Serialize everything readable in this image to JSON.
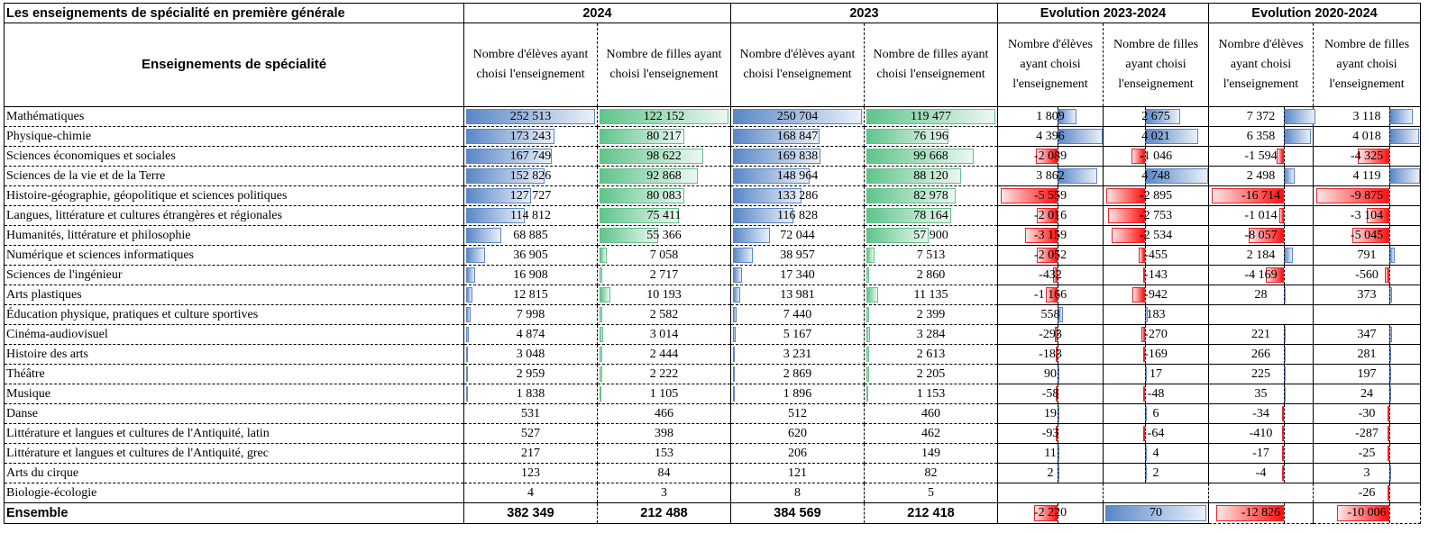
{
  "title": "Les enseignements de spécialité en première générale",
  "header": {
    "groups": [
      "2024",
      "2023",
      "Evolution 2023-2024",
      "Evolution 2020-2024"
    ],
    "label_col": "Enseignements de spécialité",
    "sub_cols": [
      "Nombre d'élèves ayant choisi l'enseignement",
      "Nombre de filles ayant choisi l'enseignement",
      "Nombre d'élèves ayant choisi l'enseignement",
      "Nombre de filles ayant choisi l'enseignement",
      "Nombre d'élèves ayant choisi l'enseignement",
      "Nombre de filles ayant choisi l'enseignement",
      "Nombre d'élèves ayant choisi l'enseignement",
      "Nombre de filles ayant choisi l'enseignement"
    ]
  },
  "colors": {
    "bar_count_students": "#5a87c7",
    "bar_count_girls": "#5fc48b",
    "bar_positive": "#5a87c7",
    "bar_negative": "#ff1010"
  },
  "rows": [
    {
      "label": "Mathématiques",
      "values": [
        "252 513",
        "122 152",
        "250 704",
        "119 477",
        "1 809",
        "2 675",
        "7 372",
        "3 118"
      ]
    },
    {
      "label": "Physique-chimie",
      "values": [
        "173 243",
        "80 217",
        "168 847",
        "76 196",
        "4 396",
        "4 021",
        "6 358",
        "4 018"
      ]
    },
    {
      "label": "Sciences économiques et sociales",
      "values": [
        "167 749",
        "98 622",
        "169 838",
        "99 668",
        "-2 089",
        "-1 046",
        "-1 594",
        "-4 325"
      ]
    },
    {
      "label": "Sciences de la vie et de la Terre",
      "values": [
        "152 826",
        "92 868",
        "148 964",
        "88 120",
        "3 862",
        "4 748",
        "2 498",
        "4 119"
      ]
    },
    {
      "label": "Histoire-géographie, géopolitique et sciences politiques",
      "values": [
        "127 727",
        "80 083",
        "133 286",
        "82 978",
        "-5 559",
        "-2 895",
        "-16 714",
        "-9 875"
      ]
    },
    {
      "label": "Langues, littérature et cultures étrangères et régionales",
      "values": [
        "114 812",
        "75 411",
        "116 828",
        "78 164",
        "-2 016",
        "-2 753",
        "-1 014",
        "-3 104"
      ]
    },
    {
      "label": "Humanités, littérature et philosophie",
      "values": [
        "68 885",
        "55 366",
        "72 044",
        "57 900",
        "-3 159",
        "-2 534",
        "-8 057",
        "-5 045"
      ]
    },
    {
      "label": "Numérique et sciences informatiques",
      "values": [
        "36 905",
        "7 058",
        "38 957",
        "7 513",
        "-2 052",
        "-455",
        "2 184",
        "791"
      ]
    },
    {
      "label": "Sciences de l'ingénieur",
      "values": [
        "16 908",
        "2 717",
        "17 340",
        "2 860",
        "-432",
        "-143",
        "-4 169",
        "-560"
      ]
    },
    {
      "label": "Arts plastiques",
      "values": [
        "12 815",
        "10 193",
        "13 981",
        "11 135",
        "-1 166",
        "-942",
        "28",
        "373"
      ]
    },
    {
      "label": "Éducation physique, pratiques et culture sportives",
      "values": [
        "7 998",
        "2 582",
        "7 440",
        "2 399",
        "558",
        "183",
        "",
        ""
      ]
    },
    {
      "label": "Cinéma-audiovisuel",
      "values": [
        "4 874",
        "3 014",
        "5 167",
        "3 284",
        "-293",
        "-270",
        "221",
        "347"
      ]
    },
    {
      "label": "Histoire des arts",
      "values": [
        "3 048",
        "2 444",
        "3 231",
        "2 613",
        "-183",
        "-169",
        "266",
        "281"
      ]
    },
    {
      "label": "Théâtre",
      "values": [
        "2 959",
        "2 222",
        "2 869",
        "2 205",
        "90",
        "17",
        "225",
        "197"
      ]
    },
    {
      "label": "Musique",
      "values": [
        "1 838",
        "1 105",
        "1 896",
        "1 153",
        "-58",
        "-48",
        "35",
        "24"
      ]
    },
    {
      "label": "Danse",
      "values": [
        "531",
        "466",
        "512",
        "460",
        "19",
        "6",
        "-34",
        "-30"
      ]
    },
    {
      "label": "Littérature et langues et cultures de l'Antiquité, latin",
      "values": [
        "527",
        "398",
        "620",
        "462",
        "-93",
        "-64",
        "-410",
        "-287"
      ]
    },
    {
      "label": "Littérature et langues et cultures de l'Antiquité, grec",
      "values": [
        "217",
        "153",
        "206",
        "149",
        "11",
        "4",
        "-17",
        "-25"
      ]
    },
    {
      "label": "Arts du cirque",
      "values": [
        "123",
        "84",
        "121",
        "82",
        "2",
        "2",
        "-4",
        "3"
      ]
    },
    {
      "label": "Biologie-écologie",
      "values": [
        "4",
        "3",
        "8",
        "5",
        "",
        "",
        "",
        "-26"
      ]
    }
  ],
  "total": {
    "label": "Ensemble",
    "values": [
      "382 349",
      "212 488",
      "384 569",
      "212 418",
      "-2 220",
      "70",
      "-12 826",
      "-10 006"
    ]
  }
}
